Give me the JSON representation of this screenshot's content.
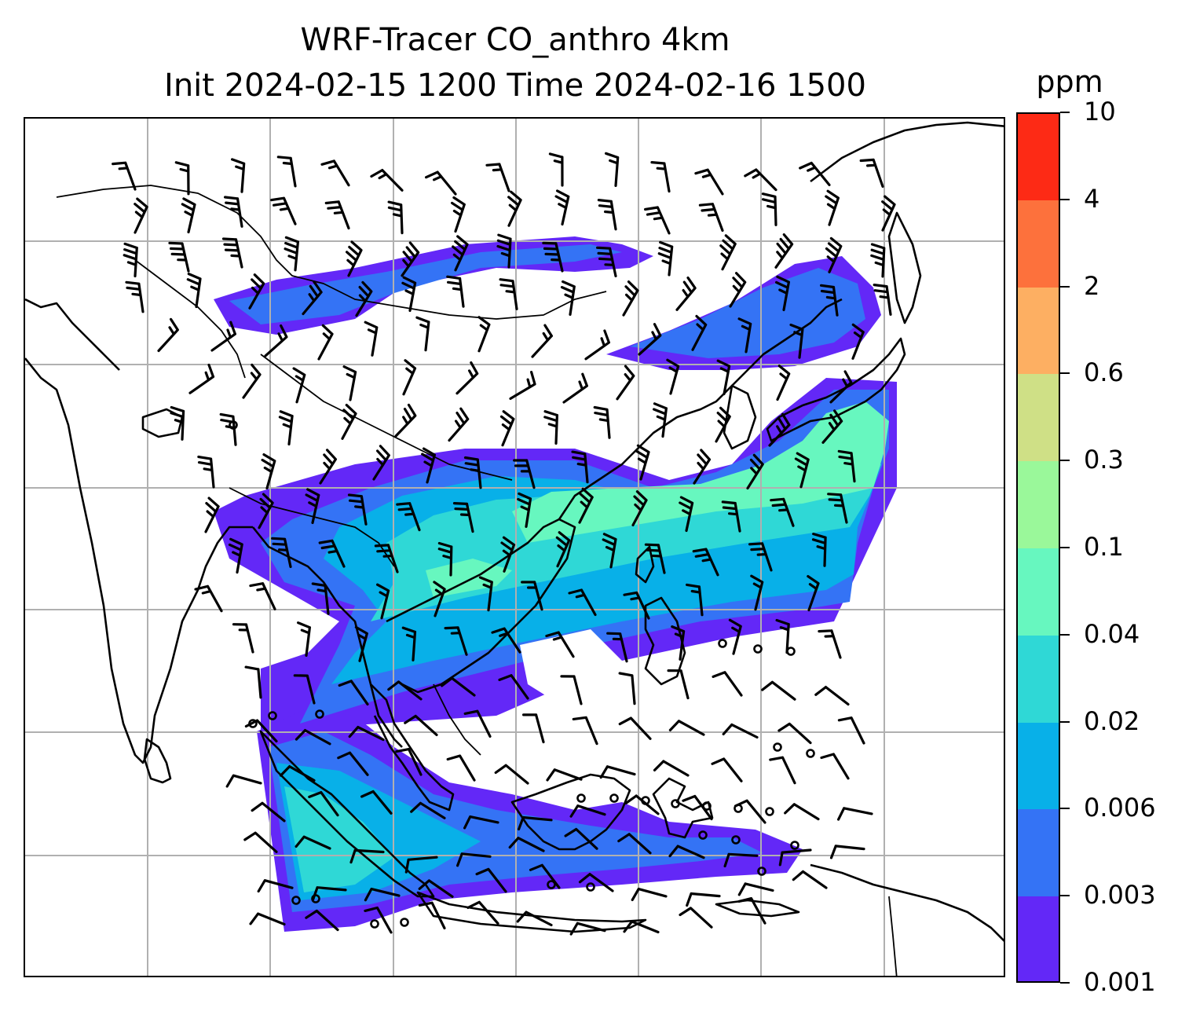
{
  "title": {
    "line1": "WRF-Tracer CO_anthro 4km",
    "line2": "Init 2024-02-15 1200 Time 2024-02-16 1500"
  },
  "colorbar": {
    "unit": "ppm",
    "levels": [
      {
        "label": "0.001",
        "color": "#6328f7"
      },
      {
        "label": "0.003",
        "color": "#3473f5"
      },
      {
        "label": "0.006",
        "color": "#08b0e8"
      },
      {
        "label": "0.02",
        "color": "#2fd8d6"
      },
      {
        "label": "0.04",
        "color": "#67f7bf"
      },
      {
        "label": "0.1",
        "color": "#9af89a"
      },
      {
        "label": "0.3",
        "color": "#cfe086"
      },
      {
        "label": "0.6",
        "color": "#fdaf62"
      },
      {
        "label": "2",
        "color": "#fd713c"
      },
      {
        "label": "4",
        "color": "#fd2a15"
      },
      {
        "label": "10",
        "color": null
      }
    ]
  },
  "map": {
    "projection": "Mercator",
    "gridlines": true,
    "coastlines": true,
    "wind_barbs": true,
    "colors": {
      "grid": "#b0b0b0",
      "coast": "#000000",
      "barb": "#000000"
    }
  }
}
